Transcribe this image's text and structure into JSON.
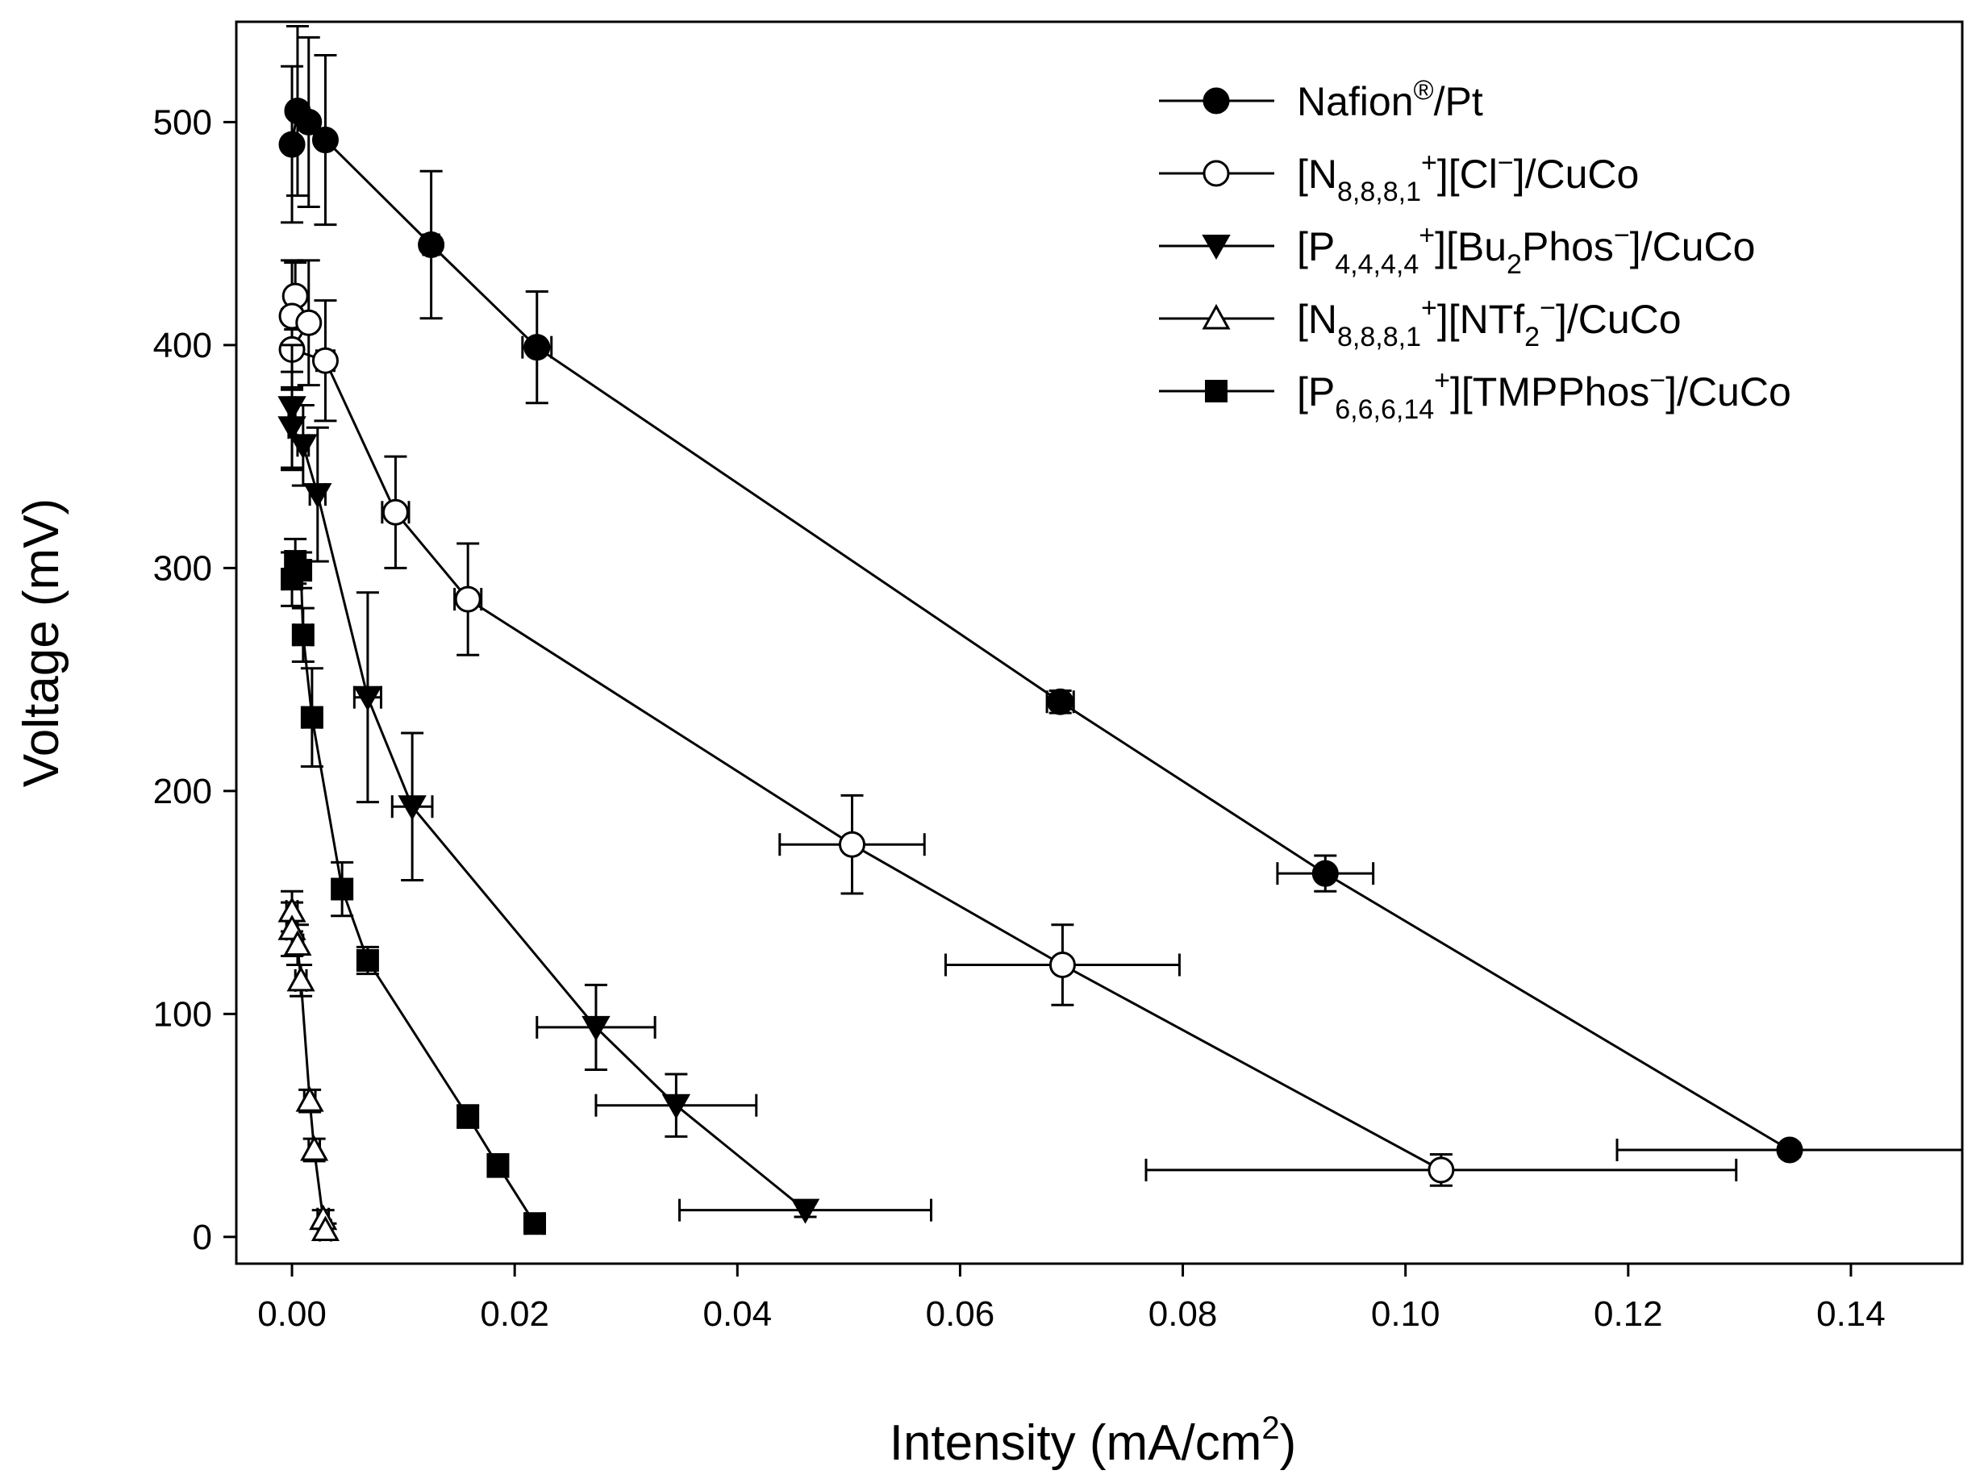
{
  "chart_data": {
    "type": "scatter",
    "title": "",
    "xlabel": {
      "base": "Intensity (mA/cm",
      "sup": "2",
      "tail": ")"
    },
    "ylabel": "Voltage (mV)",
    "xlim": [
      -0.005,
      0.15
    ],
    "ylim": [
      -12,
      545
    ],
    "x_ticks": [
      0.0,
      0.02,
      0.04,
      0.06,
      0.08,
      0.1,
      0.12,
      0.14
    ],
    "x_tick_labels": [
      "0.00",
      "0.02",
      "0.04",
      "0.06",
      "0.08",
      "0.10",
      "0.12",
      "0.14"
    ],
    "y_ticks": [
      0,
      100,
      200,
      300,
      400,
      500
    ],
    "y_tick_labels": [
      "0",
      "100",
      "200",
      "300",
      "400",
      "500"
    ],
    "grid": false,
    "legend_position": "top-right",
    "series": [
      {
        "name": "Nafion®/Pt",
        "label_parts": [
          [
            "Nafion",
            "n"
          ],
          [
            "®",
            "sup"
          ],
          [
            "/Pt",
            "n"
          ]
        ],
        "marker": "filled-circle",
        "points": [
          {
            "x": 0.0,
            "y": 490,
            "xerr": 0.0003,
            "yerr": 35
          },
          {
            "x": 0.0005,
            "y": 505,
            "xerr": 0.0003,
            "yerr": 38
          },
          {
            "x": 0.0015,
            "y": 500,
            "xerr": 0.0005,
            "yerr": 38
          },
          {
            "x": 0.003,
            "y": 492,
            "xerr": 0.0005,
            "yerr": 38
          },
          {
            "x": 0.0125,
            "y": 445,
            "xerr": 0.0007,
            "yerr": 33
          },
          {
            "x": 0.022,
            "y": 399,
            "xerr": 0.0013,
            "yerr": 25
          },
          {
            "x": 0.069,
            "y": 240,
            "xerr": 0.0012,
            "yerr": 5
          },
          {
            "x": 0.0928,
            "y": 163,
            "xerr": 0.0043,
            "yerr": 8
          },
          {
            "x": 0.1345,
            "y": 39,
            "xerr": 0.0155,
            "yerr": 3
          }
        ]
      },
      {
        "name": "[N8,8,8,1+][Cl−]/CuCo",
        "label_parts": [
          [
            "[N",
            "n"
          ],
          [
            "8,8,8,1",
            "sub"
          ],
          [
            "+",
            "sup"
          ],
          [
            "][Cl",
            "n"
          ],
          [
            "−",
            "sup"
          ],
          [
            "]/CuCo",
            "n"
          ]
        ],
        "marker": "open-circle",
        "points": [
          {
            "x": 0.0003,
            "y": 422,
            "xerr": 0.0003,
            "yerr": 15
          },
          {
            "x": 0.0,
            "y": 413,
            "xerr": 0.0003,
            "yerr": 25
          },
          {
            "x": 0.0015,
            "y": 410,
            "xerr": 0.0006,
            "yerr": 28
          },
          {
            "x": 0.0,
            "y": 398,
            "xerr": 0.0003,
            "yerr": 18
          },
          {
            "x": 0.003,
            "y": 393,
            "xerr": 0.0008,
            "yerr": 27
          },
          {
            "x": 0.0093,
            "y": 325,
            "xerr": 0.0012,
            "yerr": 25
          },
          {
            "x": 0.0158,
            "y": 286,
            "xerr": 0.0012,
            "yerr": 25
          },
          {
            "x": 0.0503,
            "y": 176,
            "xerr": 0.0065,
            "yerr": 22
          },
          {
            "x": 0.0692,
            "y": 122,
            "xerr": 0.0105,
            "yerr": 18
          },
          {
            "x": 0.1032,
            "y": 30,
            "xerr": 0.0265,
            "yerr": 7
          }
        ]
      },
      {
        "name": "[P4,4,4,4+][Bu2Phos−]/CuCo",
        "label_parts": [
          [
            "[P",
            "n"
          ],
          [
            "4,4,4,4",
            "sub"
          ],
          [
            "+",
            "sup"
          ],
          [
            "][Bu",
            "n"
          ],
          [
            "2",
            "sub"
          ],
          [
            "Phos",
            "n"
          ],
          [
            "−",
            "sup"
          ],
          [
            "]/CuCo",
            "n"
          ]
        ],
        "marker": "filled-triangle-down",
        "points": [
          {
            "x": 0.0,
            "y": 372,
            "xerr": 0.0003,
            "yerr": 28
          },
          {
            "x": 0.0,
            "y": 363,
            "xerr": 0.0003,
            "yerr": 18
          },
          {
            "x": 0.001,
            "y": 355,
            "xerr": 0.0005,
            "yerr": 18
          },
          {
            "x": 0.0023,
            "y": 333,
            "xerr": 0.0007,
            "yerr": 30
          },
          {
            "x": 0.0068,
            "y": 242,
            "xerr": 0.0012,
            "yerr": 47
          },
          {
            "x": 0.0108,
            "y": 193,
            "xerr": 0.0018,
            "yerr": 33
          },
          {
            "x": 0.0273,
            "y": 94,
            "xerr": 0.0053,
            "yerr": 19
          },
          {
            "x": 0.0345,
            "y": 59,
            "xerr": 0.0072,
            "yerr": 14
          },
          {
            "x": 0.0461,
            "y": 12,
            "xerr": 0.0113,
            "yerr": 3
          }
        ]
      },
      {
        "name": "[N8,8,8,1+][NTf2−]/CuCo",
        "label_parts": [
          [
            "[N",
            "n"
          ],
          [
            "8,8,8,1",
            "sub"
          ],
          [
            "+",
            "sup"
          ],
          [
            "][NTf",
            "n"
          ],
          [
            "2",
            "sub"
          ],
          [
            "−",
            "sup"
          ],
          [
            "]/CuCo",
            "n"
          ]
        ],
        "marker": "open-triangle-up",
        "points": [
          {
            "x": 0.0,
            "y": 146,
            "xerr": 0.0005,
            "yerr": 9
          },
          {
            "x": 0.0,
            "y": 138,
            "xerr": 0.0005,
            "yerr": 12
          },
          {
            "x": 0.0005,
            "y": 131,
            "xerr": 0.0005,
            "yerr": 9
          },
          {
            "x": 0.0008,
            "y": 115,
            "xerr": 0.0005,
            "yerr": 7
          },
          {
            "x": 0.0016,
            "y": 61,
            "xerr": 0.0005,
            "yerr": 5
          },
          {
            "x": 0.002,
            "y": 39,
            "xerr": 0.0005,
            "yerr": 5
          },
          {
            "x": 0.0028,
            "y": 8,
            "xerr": 0.0005,
            "yerr": 4
          },
          {
            "x": 0.003,
            "y": 3,
            "xerr": 0.0005,
            "yerr": 3
          }
        ]
      },
      {
        "name": "[P6,6,6,14+][TMPPhos−]/CuCo",
        "label_parts": [
          [
            "[P",
            "n"
          ],
          [
            "6,6,6,14",
            "sub"
          ],
          [
            "+",
            "sup"
          ],
          [
            "][TMPPhos",
            "n"
          ],
          [
            "−",
            "sup"
          ],
          [
            "]/CuCo",
            "n"
          ]
        ],
        "marker": "filled-square",
        "points": [
          {
            "x": 0.0,
            "y": 295,
            "xerr": 0.0008,
            "yerr": 12
          },
          {
            "x": 0.0003,
            "y": 303,
            "xerr": 0.0008,
            "yerr": 10
          },
          {
            "x": 0.0008,
            "y": 299,
            "xerr": 0.0008,
            "yerr": 8
          },
          {
            "x": 0.001,
            "y": 270,
            "xerr": 0.0008,
            "yerr": 12
          },
          {
            "x": 0.0018,
            "y": 233,
            "xerr": 0.0008,
            "yerr": 22
          },
          {
            "x": 0.0045,
            "y": 156,
            "xerr": 0.0008,
            "yerr": 12
          },
          {
            "x": 0.0068,
            "y": 124,
            "xerr": 0.0008,
            "yerr": 6
          },
          {
            "x": 0.0158,
            "y": 54,
            "xerr": 0.0008,
            "yerr": 5
          },
          {
            "x": 0.0185,
            "y": 32,
            "xerr": 0.0008,
            "yerr": 5
          },
          {
            "x": 0.0218,
            "y": 6,
            "xerr": 0.0008,
            "yerr": 3
          }
        ]
      }
    ]
  }
}
